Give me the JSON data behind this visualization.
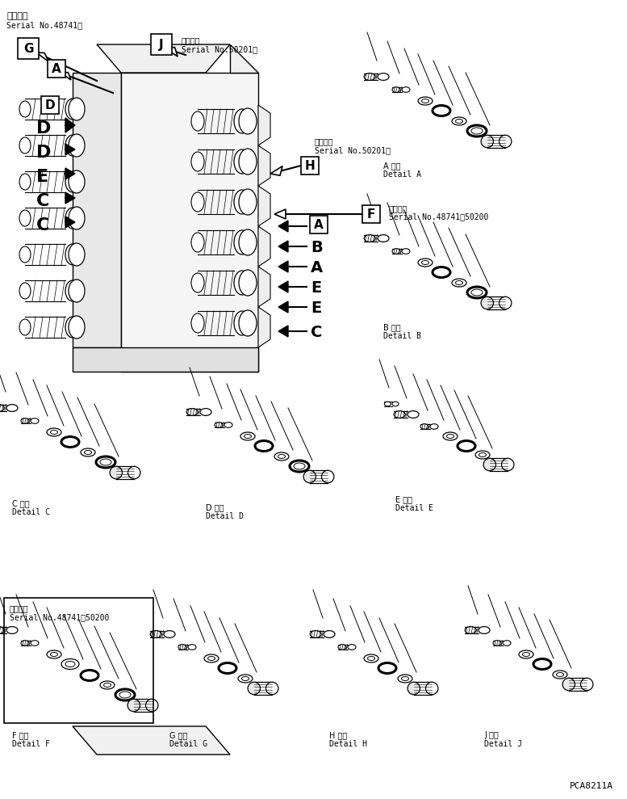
{
  "bg_color": "#ffffff",
  "line_color": "#000000",
  "text_color": "#000000",
  "part_code": "PCA8211A",
  "labels": {
    "top_left_title": "適用号機",
    "top_left_serial": "Serial No.48741～",
    "label_G": "G",
    "label_J": "J",
    "label_J_title": "適用号機",
    "label_J_serial": "Serial No.50201～",
    "label_A_top": "A",
    "label_D_box": "D",
    "label_H": "H",
    "label_H_title": "適用号檟",
    "label_H_serial": "Serial No.50201～",
    "label_F": "F",
    "label_F_title": "適用号機",
    "label_F_serial": "Serial No.48741～50200",
    "label_A_right": "A",
    "left_labels": [
      "D",
      "D",
      "E",
      "C",
      "C"
    ],
    "right_labels": [
      "A",
      "B",
      "A",
      "E",
      "E",
      "C"
    ],
    "detail_A_title": "A 詳細",
    "detail_A_sub": "Detail A",
    "detail_B_title": "B 詳細",
    "detail_B_sub": "Detail B",
    "detail_C_title": "C 詳細",
    "detail_C_sub": "Detail C",
    "detail_D_title": "D 詳細",
    "detail_D_sub": "Detail D",
    "detail_E_title": "E 詳細",
    "detail_E_sub": "Detail E",
    "detail_F_title": "F 詳細",
    "detail_F_sub": "Detail F",
    "detail_F_serial_title": "適用号機",
    "detail_F_serial": "Serial No.48741～50200",
    "detail_G_title": "G 詳細",
    "detail_G_sub": "Detail G",
    "detail_H_title": "H 詳細",
    "detail_H_sub": "Detail H",
    "detail_J_title": "J 詳細",
    "detail_J_sub": "Detail J"
  }
}
